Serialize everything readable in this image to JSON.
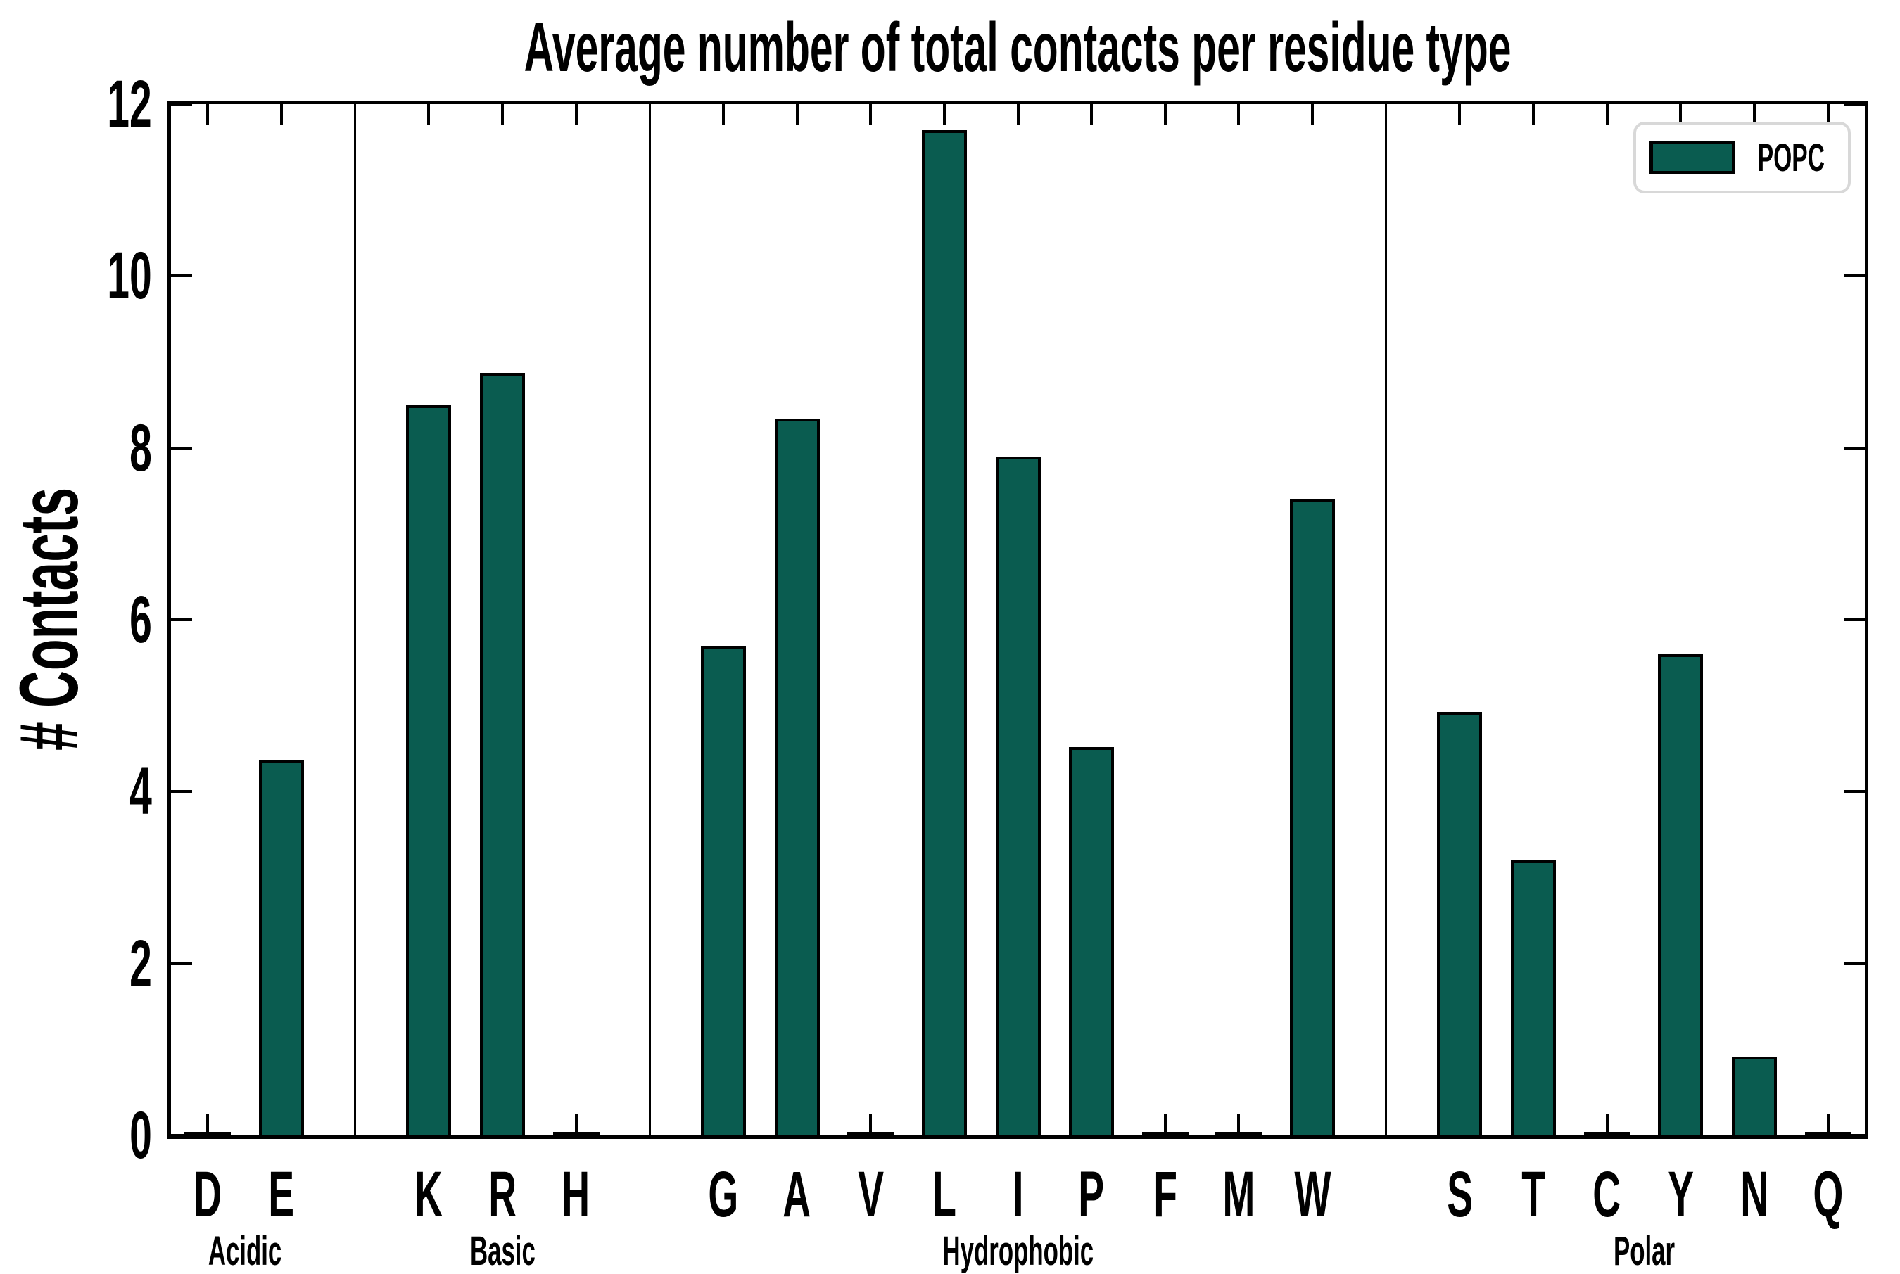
{
  "title": "Average number of total contacts per residue type",
  "ylabel": "# Contacts",
  "legend": {
    "label": "POPC"
  },
  "colors": {
    "bar_fill": "#0a5c50",
    "bar_edge": "#000000",
    "axis": "#000000",
    "legend_border": "#d8d8d8",
    "background": "#ffffff"
  },
  "chart_data": {
    "type": "bar",
    "title": "Average number of total contacts per residue type",
    "xlabel": "",
    "ylabel": "# Contacts",
    "ylim": [
      0,
      12
    ],
    "yticks": [
      0,
      2,
      4,
      6,
      8,
      10,
      12
    ],
    "grid": false,
    "legend_position": "upper right",
    "series": [
      {
        "name": "POPC",
        "color": "#0a5c50"
      }
    ],
    "groups": [
      {
        "label": "Acidic",
        "categories": [
          "D",
          "E"
        ],
        "values": [
          0,
          4.37
        ]
      },
      {
        "label": "Basic",
        "categories": [
          "K",
          "R",
          "H"
        ],
        "values": [
          8.5,
          8.87,
          0
        ]
      },
      {
        "label": "Hydrophobic",
        "categories": [
          "G",
          "A",
          "V",
          "L",
          "I",
          "P",
          "F",
          "M",
          "W"
        ],
        "values": [
          5.7,
          8.34,
          0,
          11.7,
          7.9,
          4.52,
          0,
          0,
          7.41
        ]
      },
      {
        "label": "Polar",
        "categories": [
          "S",
          "T",
          "C",
          "Y",
          "N",
          "Q"
        ],
        "values": [
          4.93,
          3.2,
          0,
          5.6,
          0.92,
          0
        ]
      }
    ]
  }
}
